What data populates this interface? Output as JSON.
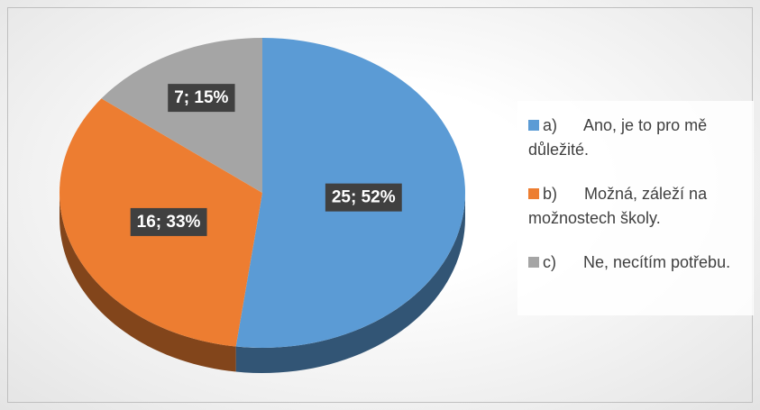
{
  "chart_data": {
    "type": "pie",
    "categories": [
      "a)      Ano, je to pro mě důležité.",
      "b)      Možná, záleží na možnostech školy.",
      "c)      Ne, necítím potřebu."
    ],
    "values": [
      25,
      16,
      7
    ],
    "value_labels": [
      "25; 52%",
      "16; 33%",
      "7; 15%"
    ],
    "colors": [
      "#5b9bd5",
      "#ed7d31",
      "#a5a5a5"
    ],
    "legend": "right"
  }
}
